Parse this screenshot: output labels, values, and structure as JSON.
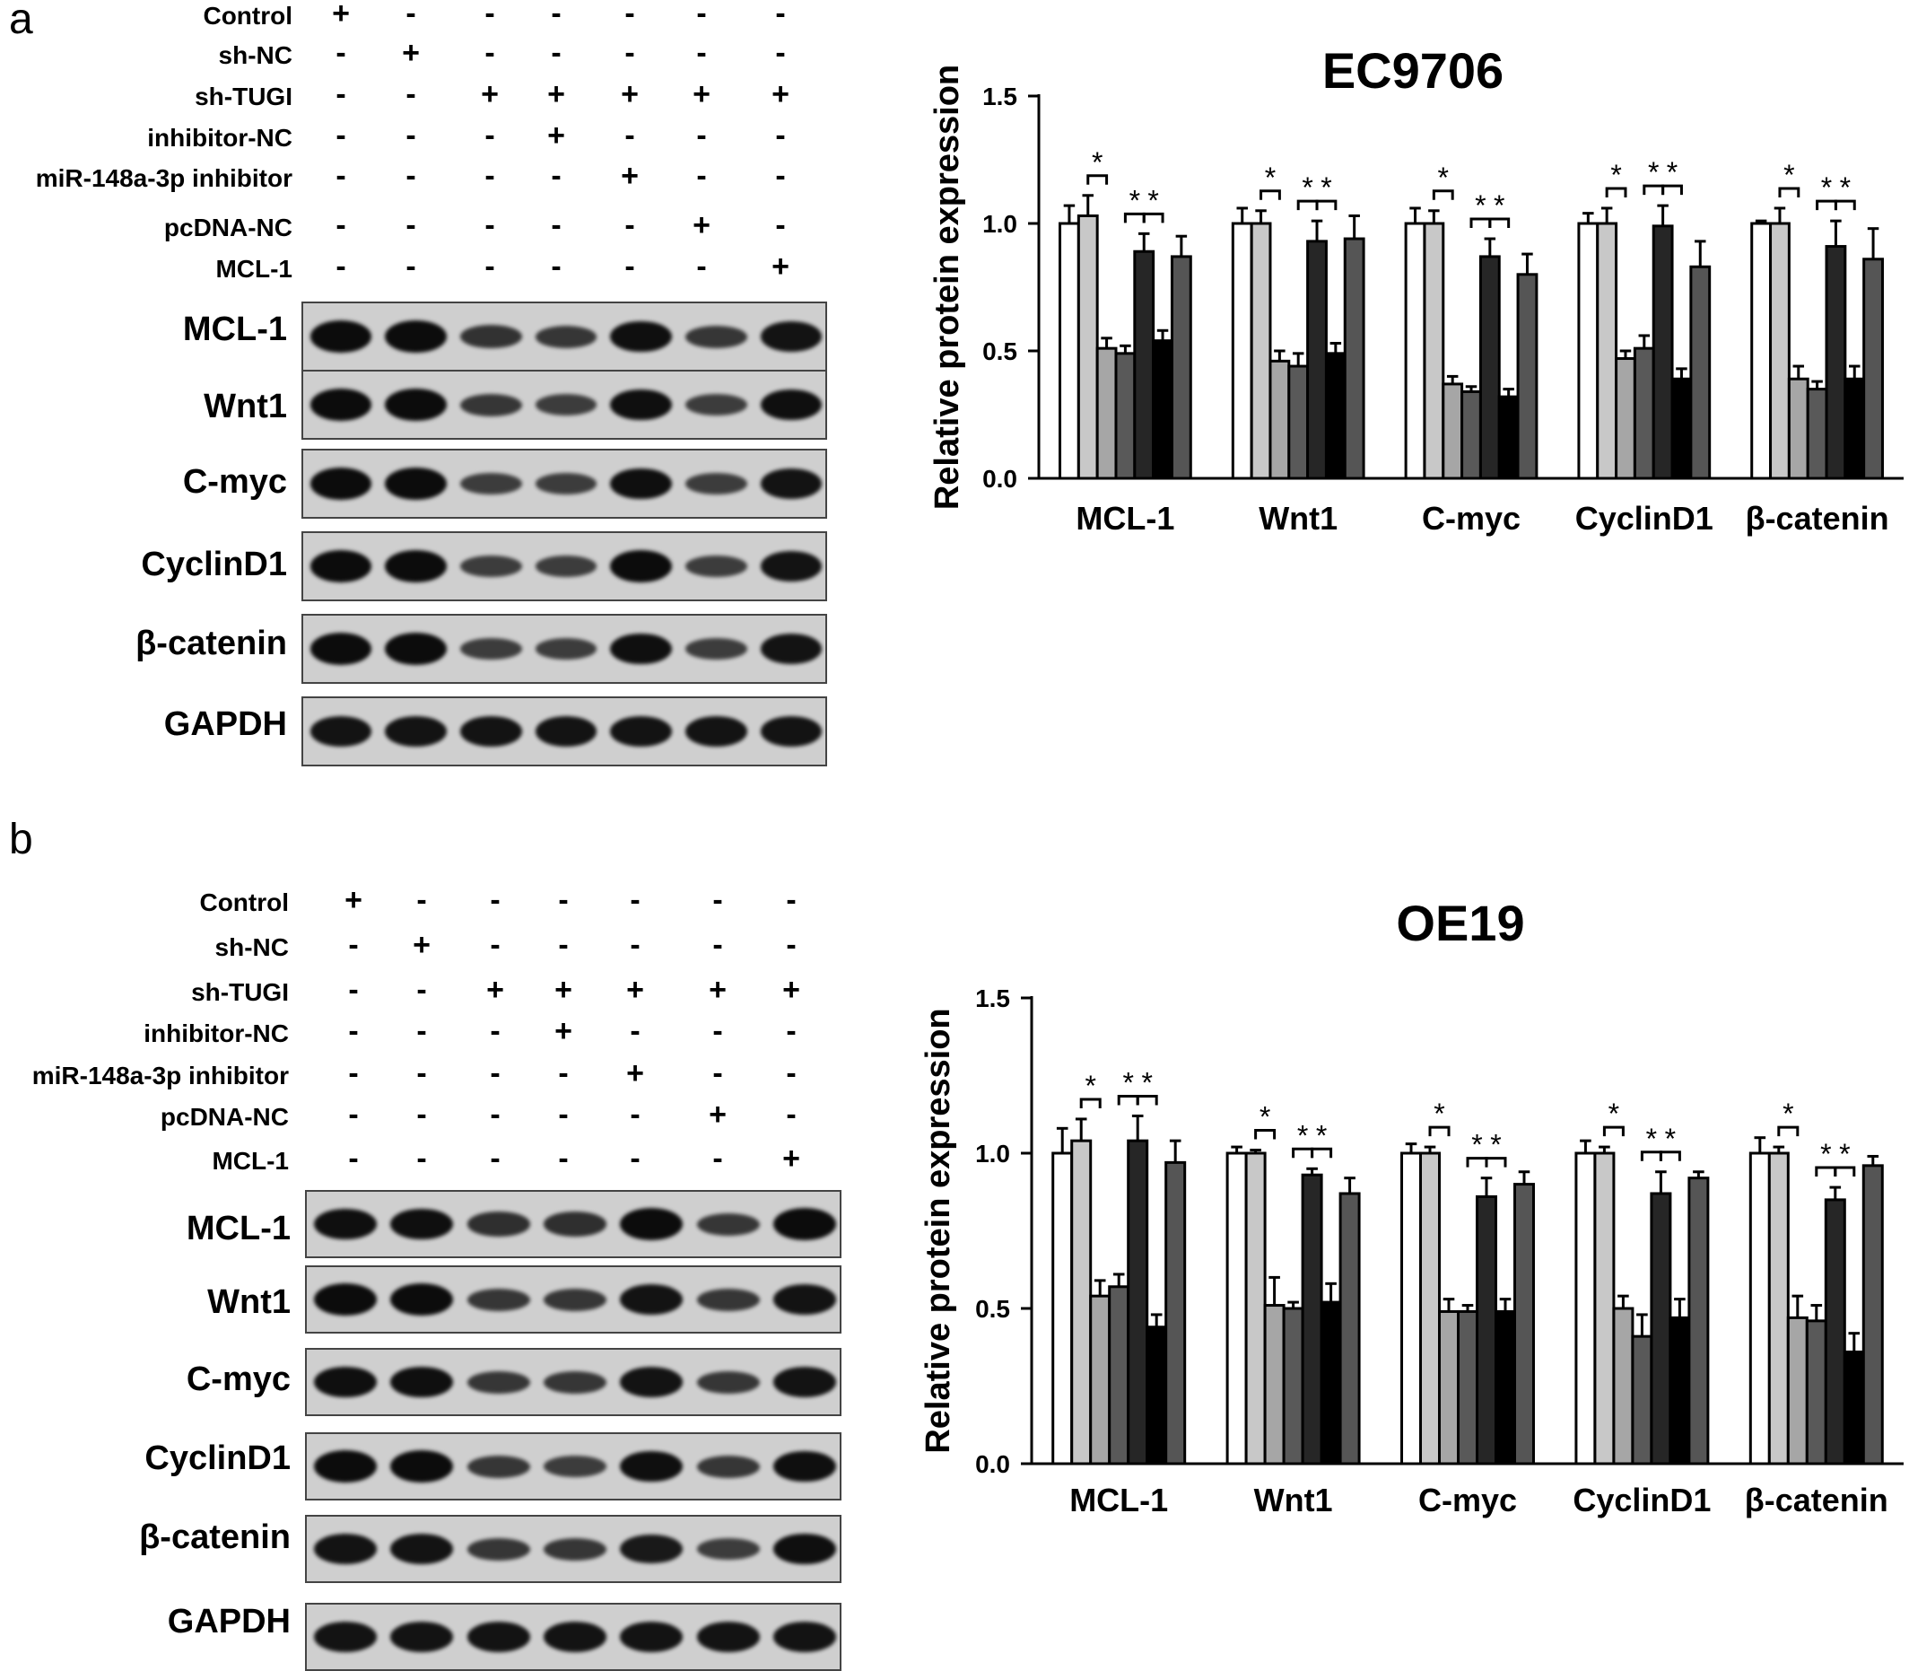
{
  "panels": [
    {
      "letter": "a",
      "treatments": [
        {
          "label": "Control",
          "signs": [
            "+",
            "-",
            "-",
            "-",
            "-",
            "-",
            "-"
          ]
        },
        {
          "label": "sh-NC",
          "signs": [
            "-",
            "+",
            "-",
            "-",
            "-",
            "-",
            "-"
          ]
        },
        {
          "label": "sh-TUGI",
          "signs": [
            "-",
            "-",
            "+",
            "+",
            "+",
            "+",
            "+"
          ]
        },
        {
          "label": "inhibitor-NC",
          "signs": [
            "-",
            "-",
            "-",
            "+",
            "-",
            "-",
            "-"
          ]
        },
        {
          "label": "miR-148a-3p inhibitor",
          "signs": [
            "-",
            "-",
            "-",
            "-",
            "+",
            "-",
            "-"
          ]
        },
        {
          "label": "pcDNA-NC",
          "signs": [
            "-",
            "-",
            "-",
            "-",
            "-",
            "+",
            "-"
          ]
        },
        {
          "label": "MCL-1",
          "signs": [
            "-",
            "-",
            "-",
            "-",
            "-",
            "-",
            "+"
          ]
        }
      ],
      "blots": [
        {
          "label": "MCL-1",
          "intensity": [
            1.0,
            1.0,
            0.55,
            0.5,
            0.95,
            0.5,
            0.9
          ]
        },
        {
          "label": "Wnt1",
          "intensity": [
            1.0,
            1.0,
            0.5,
            0.45,
            0.95,
            0.45,
            0.95
          ]
        },
        {
          "label": "C-myc",
          "intensity": [
            1.0,
            1.0,
            0.45,
            0.45,
            0.95,
            0.45,
            0.9
          ]
        },
        {
          "label": "CyclinD1",
          "intensity": [
            1.0,
            1.0,
            0.45,
            0.45,
            1.0,
            0.45,
            0.9
          ]
        },
        {
          "label": "β-catenin",
          "intensity": [
            1.0,
            1.0,
            0.45,
            0.45,
            0.95,
            0.45,
            0.9
          ]
        },
        {
          "label": "GAPDH",
          "intensity": [
            0.9,
            0.9,
            0.9,
            0.9,
            0.9,
            0.9,
            0.9
          ]
        }
      ]
    },
    {
      "letter": "b",
      "treatments": [
        {
          "label": "Control",
          "signs": [
            "+",
            "-",
            "-",
            "-",
            "-",
            "-",
            "-"
          ]
        },
        {
          "label": "sh-NC",
          "signs": [
            "-",
            "+",
            "-",
            "-",
            "-",
            "-",
            "-"
          ]
        },
        {
          "label": "sh-TUGI",
          "signs": [
            "-",
            "-",
            "+",
            "+",
            "+",
            "+",
            "+"
          ]
        },
        {
          "label": "inhibitor-NC",
          "signs": [
            "-",
            "-",
            "-",
            "+",
            "-",
            "-",
            "-"
          ]
        },
        {
          "label": "miR-148a-3p inhibitor",
          "signs": [
            "-",
            "-",
            "-",
            "-",
            "+",
            "-",
            "-"
          ]
        },
        {
          "label": "pcDNA-NC",
          "signs": [
            "-",
            "-",
            "-",
            "-",
            "-",
            "+",
            "-"
          ]
        },
        {
          "label": "MCL-1",
          "signs": [
            "-",
            "-",
            "-",
            "-",
            "-",
            "-",
            "+"
          ]
        }
      ],
      "blots": [
        {
          "label": "MCL-1",
          "intensity": [
            0.95,
            0.95,
            0.6,
            0.6,
            1.0,
            0.5,
            1.0
          ]
        },
        {
          "label": "Wnt1",
          "intensity": [
            1.0,
            1.0,
            0.5,
            0.5,
            0.9,
            0.5,
            0.9
          ]
        },
        {
          "label": "C-myc",
          "intensity": [
            0.95,
            0.95,
            0.5,
            0.5,
            0.9,
            0.5,
            0.9
          ]
        },
        {
          "label": "CyclinD1",
          "intensity": [
            1.0,
            1.0,
            0.5,
            0.45,
            0.95,
            0.5,
            0.95
          ]
        },
        {
          "label": "β-catenin",
          "intensity": [
            0.9,
            0.9,
            0.5,
            0.5,
            0.85,
            0.45,
            0.95
          ]
        },
        {
          "label": "GAPDH",
          "intensity": [
            0.9,
            0.9,
            0.9,
            0.9,
            0.9,
            0.9,
            0.9
          ]
        }
      ]
    }
  ],
  "chart_data": [
    {
      "type": "bar",
      "title": "EC9706",
      "ylabel": "Relative protein expression",
      "xlabel": "",
      "ylim": [
        0,
        1.5
      ],
      "yticks": [
        "0.0",
        "0.5",
        "1.0",
        "1.5"
      ],
      "categories": [
        "MCL-1",
        "Wnt1",
        "C-myc",
        "CyclinD1",
        "β-catenin"
      ],
      "series": [
        {
          "color": "#ffffff",
          "values": [
            1.0,
            1.0,
            1.0,
            1.0,
            1.0
          ],
          "errors": [
            0.07,
            0.06,
            0.06,
            0.04,
            0.01
          ]
        },
        {
          "color": "#c8c8c8",
          "values": [
            1.03,
            1.0,
            1.0,
            1.0,
            1.0
          ],
          "errors": [
            0.08,
            0.05,
            0.05,
            0.06,
            0.06
          ]
        },
        {
          "color": "#a6a6a6",
          "values": [
            0.51,
            0.46,
            0.37,
            0.47,
            0.39
          ],
          "errors": [
            0.04,
            0.04,
            0.03,
            0.03,
            0.05
          ]
        },
        {
          "color": "#595959",
          "values": [
            0.49,
            0.44,
            0.34,
            0.51,
            0.35
          ],
          "errors": [
            0.03,
            0.05,
            0.02,
            0.05,
            0.03
          ]
        },
        {
          "color": "#262626",
          "values": [
            0.89,
            0.93,
            0.87,
            0.99,
            0.91
          ],
          "errors": [
            0.07,
            0.08,
            0.07,
            0.08,
            0.1
          ]
        },
        {
          "color": "#000000",
          "values": [
            0.54,
            0.49,
            0.32,
            0.39,
            0.39
          ],
          "errors": [
            0.04,
            0.04,
            0.03,
            0.04,
            0.05
          ]
        },
        {
          "color": "#555555",
          "values": [
            0.87,
            0.94,
            0.8,
            0.83,
            0.86
          ],
          "errors": [
            0.08,
            0.09,
            0.08,
            0.1,
            0.12
          ]
        }
      ],
      "significance": [
        [
          1,
          2
        ],
        [
          3,
          4
        ],
        [
          4,
          5
        ]
      ],
      "star": "*"
    },
    {
      "type": "bar",
      "title": "OE19",
      "ylabel": "Relative protein expression",
      "xlabel": "",
      "ylim": [
        0,
        1.5
      ],
      "yticks": [
        "0.0",
        "0.5",
        "1.0",
        "1.5"
      ],
      "categories": [
        "MCL-1",
        "Wnt1",
        "C-myc",
        "CyclinD1",
        "β-catenin"
      ],
      "series": [
        {
          "color": "#ffffff",
          "values": [
            1.0,
            1.0,
            1.0,
            1.0,
            1.0
          ],
          "errors": [
            0.08,
            0.02,
            0.03,
            0.04,
            0.05
          ]
        },
        {
          "color": "#c8c8c8",
          "values": [
            1.04,
            1.0,
            1.0,
            1.0,
            1.0
          ],
          "errors": [
            0.07,
            0.01,
            0.02,
            0.02,
            0.02
          ]
        },
        {
          "color": "#a6a6a6",
          "values": [
            0.54,
            0.51,
            0.49,
            0.5,
            0.47
          ],
          "errors": [
            0.05,
            0.09,
            0.04,
            0.04,
            0.07
          ]
        },
        {
          "color": "#595959",
          "values": [
            0.57,
            0.5,
            0.49,
            0.41,
            0.46
          ],
          "errors": [
            0.04,
            0.02,
            0.02,
            0.07,
            0.05
          ]
        },
        {
          "color": "#262626",
          "values": [
            1.04,
            0.93,
            0.86,
            0.87,
            0.85
          ],
          "errors": [
            0.08,
            0.02,
            0.06,
            0.07,
            0.04
          ]
        },
        {
          "color": "#000000",
          "values": [
            0.44,
            0.52,
            0.49,
            0.47,
            0.36
          ],
          "errors": [
            0.04,
            0.06,
            0.04,
            0.06,
            0.06
          ]
        },
        {
          "color": "#555555",
          "values": [
            0.97,
            0.87,
            0.9,
            0.92,
            0.96
          ],
          "errors": [
            0.07,
            0.05,
            0.04,
            0.02,
            0.03
          ]
        }
      ],
      "significance": [
        [
          1,
          2
        ],
        [
          3,
          4
        ],
        [
          4,
          5
        ]
      ],
      "star": "*"
    }
  ]
}
